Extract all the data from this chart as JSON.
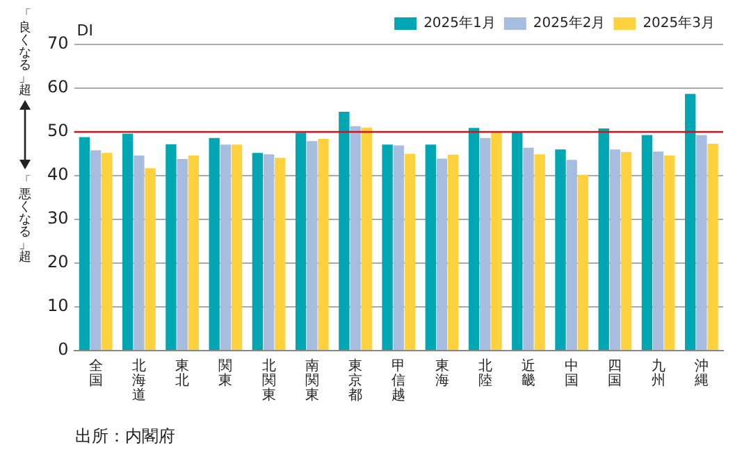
{
  "chart_data": {
    "type": "bar",
    "ylabel": "DI",
    "categories": [
      "全国",
      "北海道",
      "東北",
      "関東",
      "北関東",
      "南関東",
      "東京都",
      "甲信越",
      "東海",
      "北陸",
      "近畿",
      "中国",
      "四国",
      "九州",
      "沖縄"
    ],
    "series": [
      {
        "name": "2025年1月",
        "color": "#00a6b2",
        "values": [
          48.8,
          49.6,
          47.2,
          48.6,
          45.2,
          49.8,
          54.6,
          47.1,
          47.1,
          50.9,
          50.1,
          46.0,
          50.8,
          49.3,
          58.7
        ]
      },
      {
        "name": "2025年2月",
        "color": "#a6bde0",
        "values": [
          45.8,
          44.6,
          43.8,
          47.1,
          44.9,
          47.9,
          51.3,
          46.9,
          43.9,
          48.6,
          46.4,
          43.6,
          46.0,
          45.5,
          49.3
        ]
      },
      {
        "name": "2025年3月",
        "color": "#fdd23e",
        "values": [
          45.2,
          41.7,
          44.6,
          47.1,
          44.1,
          48.4,
          51.0,
          45.0,
          44.8,
          50.0,
          44.9,
          40.2,
          45.4,
          44.6,
          47.3
        ]
      }
    ],
    "ylim": [
      0,
      70
    ],
    "yticks": [
      0,
      10,
      20,
      30,
      40,
      50,
      60,
      70
    ],
    "grid": "y",
    "legend": "top right",
    "ref_lines": [
      {
        "axis": "y",
        "value": 50,
        "color": "#d0121b"
      }
    ],
    "annotations": [
      "「良くなる」超",
      "「悪くなる」超",
      "出所：内閣府"
    ]
  }
}
